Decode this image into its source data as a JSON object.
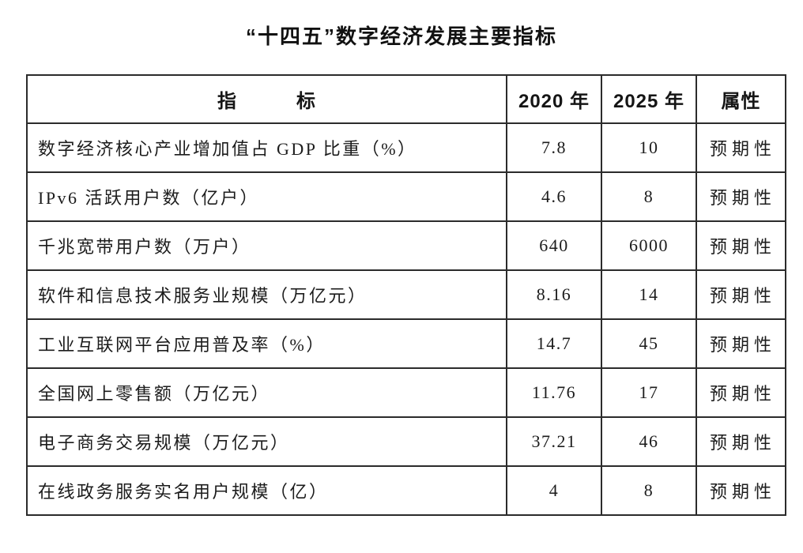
{
  "chart_data": {
    "type": "table",
    "title": "“十四五”数字经济发展主要指标",
    "columns": [
      "指　　　标",
      "2020 年",
      "2025 年",
      "属性"
    ],
    "rows": [
      [
        "数字经济核心产业增加值占 GDP 比重（%）",
        "7.8",
        "10",
        "预期性"
      ],
      [
        "IPv6 活跃用户数（亿户）",
        "4.6",
        "8",
        "预期性"
      ],
      [
        "千兆宽带用户数（万户）",
        "640",
        "6000",
        "预期性"
      ],
      [
        "软件和信息技术服务业规模（万亿元）",
        "8.16",
        "14",
        "预期性"
      ],
      [
        "工业互联网平台应用普及率（%）",
        "14.7",
        "45",
        "预期性"
      ],
      [
        "全国网上零售额（万亿元）",
        "11.76",
        "17",
        "预期性"
      ],
      [
        "电子商务交易规模（万亿元）",
        "37.21",
        "46",
        "预期性"
      ],
      [
        "在线政务服务实名用户规模（亿）",
        "4",
        "8",
        "预期性"
      ]
    ],
    "notes": {
      "attribute_value_all_rows": "预期性",
      "layout": "bordered grid table, indicator column left-aligned, value and attribute columns centered"
    }
  },
  "colors": {
    "background": "#ffffff",
    "text": "#1a1a1a",
    "border": "#2b2b2b"
  }
}
